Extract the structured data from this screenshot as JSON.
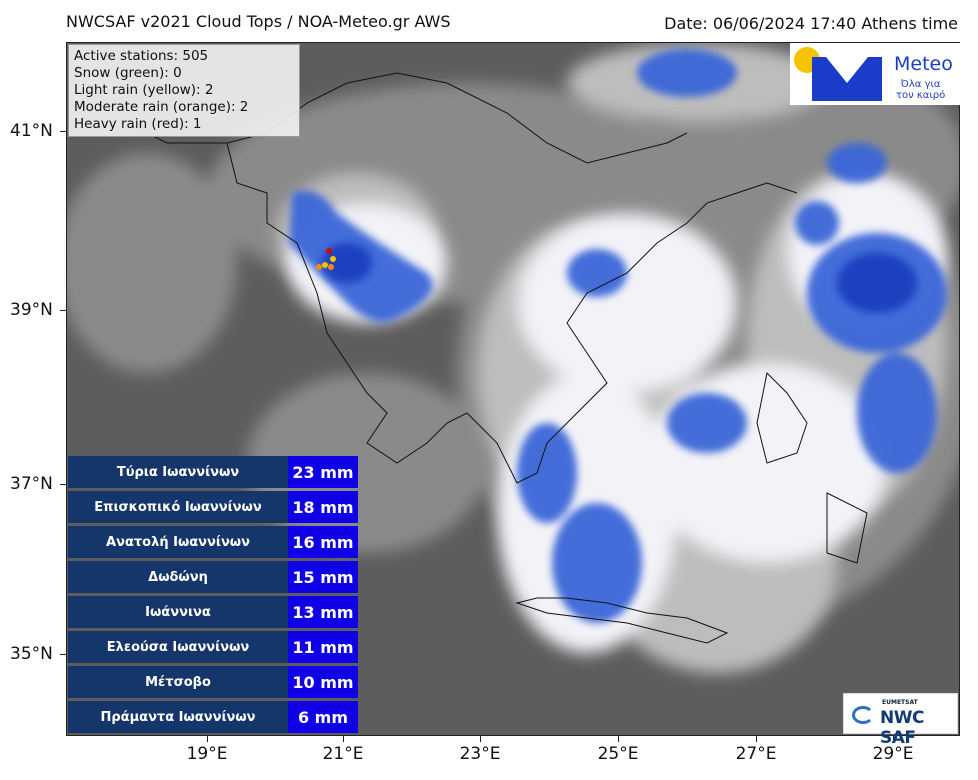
{
  "header": {
    "title": "NWCSAF v2021 Cloud Tops / NOA-Meteo.gr AWS",
    "date": "Date: 06/06/2024 17:40 Athens time"
  },
  "axes": {
    "lat_labels": [
      "41°N",
      "39°N",
      "37°N",
      "35°N"
    ],
    "lon_labels": [
      "19°E",
      "21°E",
      "23°E",
      "25°E",
      "27°E",
      "29°E"
    ]
  },
  "stats": {
    "active": "Active stations: 505",
    "snow": "Snow (green): 0",
    "light": "Light rain (yellow): 2",
    "moderate": "Moderate rain (orange): 2",
    "heavy": "Heavy rain (red): 1"
  },
  "logos": {
    "meteo_word": "Meteo",
    "meteo_tag_1": "Όλα για",
    "meteo_tag_2": "τον καιρό",
    "saf_small": "EUMETSAT",
    "saf_big": "NWC SAF"
  },
  "rain_table": [
    {
      "name": "Τύρια Ιωαννίνων",
      "value": "23 mm"
    },
    {
      "name": "Επισκοπικό Ιωαννίνων",
      "value": "18 mm"
    },
    {
      "name": "Ανατολή Ιωαννίνων",
      "value": "16 mm"
    },
    {
      "name": "Δωδώνη",
      "value": "15 mm"
    },
    {
      "name": "Ιωάννινα",
      "value": "13 mm"
    },
    {
      "name": "Ελεούσα Ιωαννίνων",
      "value": "11 mm"
    },
    {
      "name": "Μέτσοβο",
      "value": "10 mm"
    },
    {
      "name": "Πράμαντα Ιωαννίνων",
      "value": "6 mm"
    }
  ],
  "colors": {
    "background_cloud": "#6e6e6e",
    "cloud_white": "#ffffff",
    "cloud_blue": "#2f5fd6",
    "table_name_bg": "#15366b",
    "table_value_bg": "#1000e6"
  }
}
